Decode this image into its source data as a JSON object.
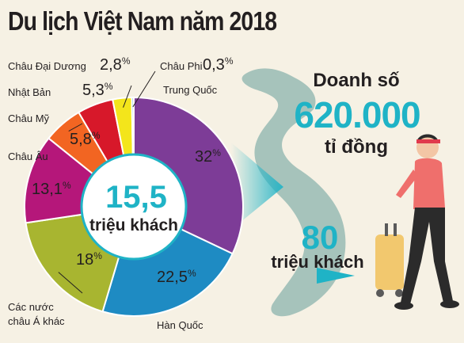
{
  "title": "Du lịch Việt Nam năm 2018",
  "chart_data": {
    "type": "pie",
    "title": "Du lịch Việt Nam năm 2018",
    "center_value": "15,5",
    "center_unit": "triệu khách",
    "slices": [
      {
        "label": "Trung Quốc",
        "value": 32,
        "value_label": "32",
        "color": "#7d3c97"
      },
      {
        "label": "Hàn Quốc",
        "value": 22.5,
        "value_label": "22,5",
        "color": "#1e8bc3"
      },
      {
        "label": "Các nước châu Á khác",
        "value": 18,
        "value_label": "18",
        "color": "#a8b530"
      },
      {
        "label": "Châu Âu",
        "value": 13.1,
        "value_label": "13,1",
        "color": "#b5177a"
      },
      {
        "label": "Châu Mỹ",
        "value": 5.8,
        "value_label": "5,8",
        "color": "#f26522"
      },
      {
        "label": "Nhật Bản",
        "value": 5.3,
        "value_label": "5,3",
        "color": "#d7182a"
      },
      {
        "label": "Châu Đại Dương",
        "value": 2.8,
        "value_label": "2,8",
        "color": "#f3e51b"
      },
      {
        "label": "Châu Phi",
        "value": 0.3,
        "value_label": "0,3",
        "color": "#7ec8e3"
      }
    ],
    "percent_sign": "%"
  },
  "stats": {
    "revenue_label": "Doanh số",
    "revenue_value": "620.000",
    "revenue_unit": "tỉ đồng",
    "visitors_value": "80",
    "visitors_unit": "triệu khách"
  },
  "colors": {
    "accent": "#1fb3c6",
    "map_fill": "#a6c3bb",
    "background": "#f6f1e4"
  }
}
